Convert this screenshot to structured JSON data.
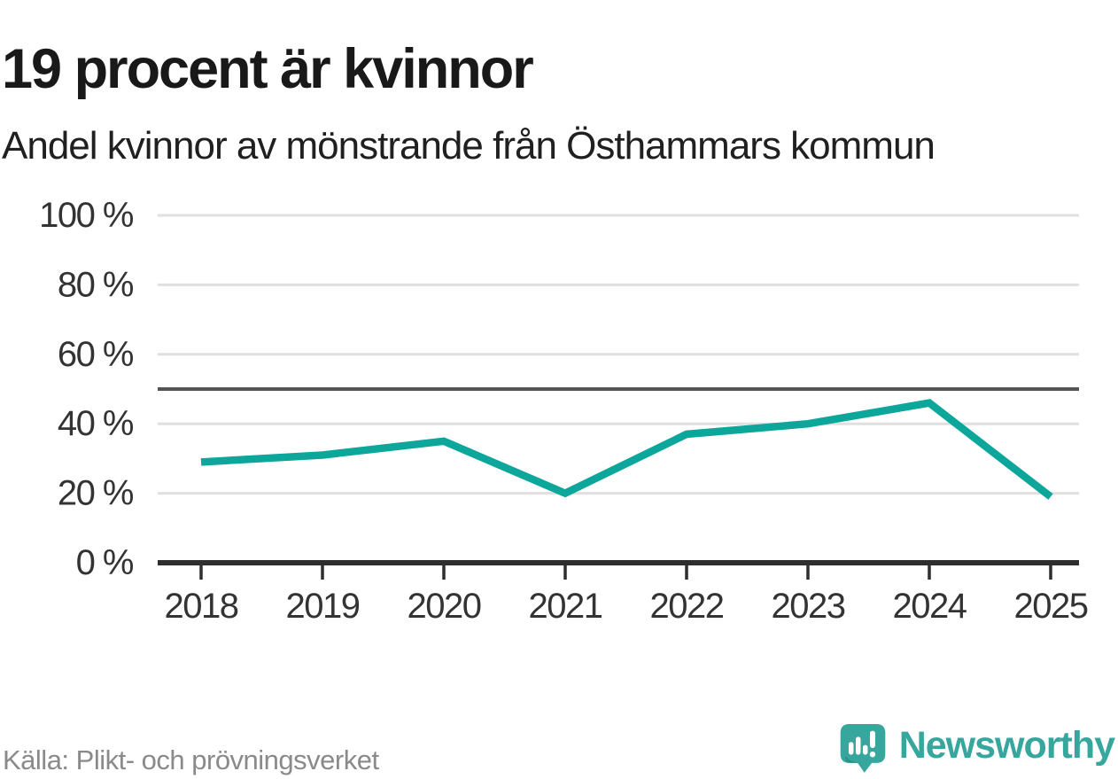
{
  "header": {
    "title": "19 procent är kvinnor",
    "subtitle": "Andel kvinnor av mönstrande från Östhammars kommun"
  },
  "chart_data": {
    "type": "line",
    "title": "19 procent är kvinnor",
    "subtitle": "Andel kvinnor av mönstrande från Östhammars kommun",
    "categories": [
      "2018",
      "2019",
      "2020",
      "2021",
      "2022",
      "2023",
      "2024",
      "2025"
    ],
    "series": [
      {
        "name": "Andel kvinnor av mönstrande",
        "values": [
          29,
          31,
          35,
          20,
          37,
          40,
          46,
          19
        ]
      }
    ],
    "unit": "%",
    "xlabel": "",
    "ylabel": "",
    "ylim": [
      0,
      100
    ],
    "yticks": [
      0,
      20,
      40,
      60,
      80,
      100
    ],
    "ytick_label_format": "{v} %",
    "reference_line_y": 50,
    "grid": "horizontal",
    "legend": "none",
    "line_color": "#0ca69b"
  },
  "footer": {
    "source": "Källa: Plikt- och prövningsverket",
    "brand_name": "Newsworthy"
  },
  "colors": {
    "accent_teal": "#0ca69b",
    "brand_teal": "#37a79e",
    "title_text": "#191919",
    "tick_text": "#333333",
    "axis_dark": "#2e2e2e",
    "grid_light": "#e0e0e0",
    "reference_line": "#545454",
    "source_gray": "#8a8a8a"
  },
  "logo": {
    "icon": "newsworthy-bubble-barchart-icon"
  }
}
